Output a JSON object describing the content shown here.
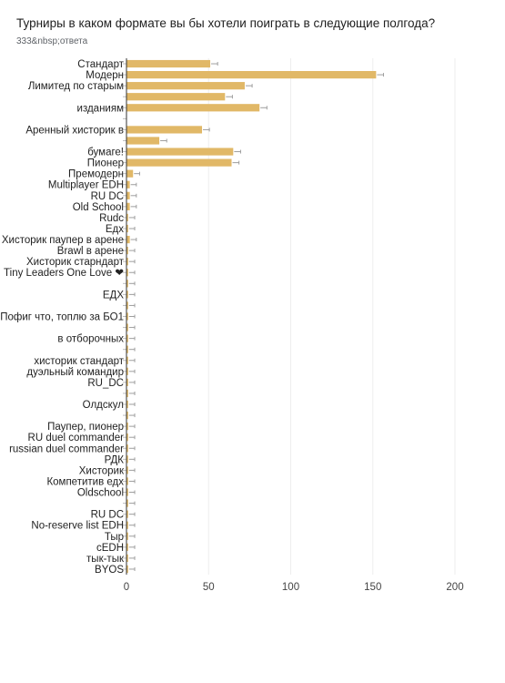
{
  "header": {
    "title": "Турниры в каком формате вы бы хотели поиграть в следующие полгода?",
    "subtitle": "333&nbsp;ответа"
  },
  "chart_data": {
    "type": "bar",
    "orientation": "horizontal",
    "bar_color": "#e1b867",
    "rows": [
      {
        "label": "Стандарт",
        "value": 51
      },
      {
        "label": "Модерн",
        "value": 152
      },
      {
        "label": "Лимитед по старым",
        "value": 72
      },
      {
        "label": "",
        "value": 60
      },
      {
        "label": "изданиям",
        "value": 81
      },
      {
        "label": "",
        "value": null
      },
      {
        "label": "Аренный хисторик в",
        "value": 46
      },
      {
        "label": "",
        "value": 20
      },
      {
        "label": "бумаге!",
        "value": 65
      },
      {
        "label": "Пионер",
        "value": 64
      },
      {
        "label": "Премодерн",
        "value": 4
      },
      {
        "label": "Multiplayer EDH",
        "value": 2
      },
      {
        "label": "RU DC",
        "value": 2
      },
      {
        "label": "Old School",
        "value": 2
      },
      {
        "label": "Rudc",
        "value": 1
      },
      {
        "label": "Едх",
        "value": 1
      },
      {
        "label": "Хисторик паупер в арене",
        "value": 2
      },
      {
        "label": "Brawl в арене",
        "value": 1
      },
      {
        "label": "Хисторик старндарт",
        "value": 1
      },
      {
        "label": "Tiny Leaders One Love ❤",
        "value": 1
      },
      {
        "label": "",
        "value": 1
      },
      {
        "label": "ЕДХ",
        "value": 1
      },
      {
        "label": "",
        "value": 1
      },
      {
        "label": "Пофиг что, топлю за БО1",
        "value": 1
      },
      {
        "label": "",
        "value": 1
      },
      {
        "label": "в отборочных",
        "value": 1
      },
      {
        "label": "",
        "value": 1
      },
      {
        "label": "хисторик стандарт",
        "value": 1
      },
      {
        "label": "дуэльный командир",
        "value": 1
      },
      {
        "label": "RU_DC",
        "value": 1
      },
      {
        "label": "",
        "value": 1
      },
      {
        "label": "Олдскул",
        "value": 1
      },
      {
        "label": "",
        "value": 1
      },
      {
        "label": "Паупер, пионер",
        "value": 1
      },
      {
        "label": "RU duel commander",
        "value": 1
      },
      {
        "label": "russian duel commander",
        "value": 1
      },
      {
        "label": "РДК",
        "value": 1
      },
      {
        "label": "Хисторик",
        "value": 1
      },
      {
        "label": "Компетитив едх",
        "value": 1
      },
      {
        "label": "Oldschool",
        "value": 1
      },
      {
        "label": "",
        "value": 1
      },
      {
        "label": "RU DC",
        "value": 1
      },
      {
        "label": "No-reserve list EDH",
        "value": 1
      },
      {
        "label": "Тыр",
        "value": 1
      },
      {
        "label": "cEDH",
        "value": 1
      },
      {
        "label": "тык-тык",
        "value": 1
      },
      {
        "label": "BYOS",
        "value": 1
      }
    ],
    "xticks": [
      0,
      50,
      100,
      150,
      200
    ],
    "xlim": [
      0,
      200
    ],
    "grid": true,
    "legend": "none"
  }
}
